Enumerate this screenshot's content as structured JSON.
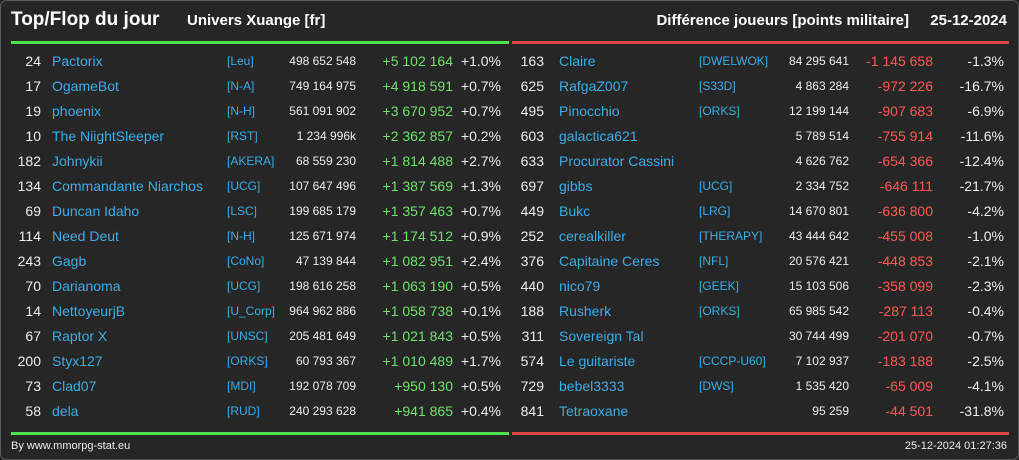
{
  "header": {
    "title": "Top/Flop du jour",
    "universe": "Univers Xuange [fr]",
    "subtitle": "Différence joueurs [points militaire]",
    "date": "25-12-2024"
  },
  "footer": {
    "credit": "By www.mmorpg-stat.eu",
    "timestamp": "25-12-2024 01:27:36"
  },
  "colors": {
    "top_accent": "#4fe04f",
    "flop_accent": "#e04a42",
    "name_link": "#3aaee8",
    "positive": "#6fe26b",
    "negative": "#ff5a52"
  },
  "top": [
    {
      "rank": "24",
      "name": "Pactorix",
      "alliance": "[Leu]",
      "points": "498 652 548",
      "diff": "+5 102 164",
      "pct": "+1.0%"
    },
    {
      "rank": "17",
      "name": "OgameBot",
      "alliance": "[N-A]",
      "points": "749 164 975",
      "diff": "+4 918 591",
      "pct": "+0.7%"
    },
    {
      "rank": "19",
      "name": "phoenix",
      "alliance": "[N-H]",
      "points": "561 091 902",
      "diff": "+3 670 952",
      "pct": "+0.7%"
    },
    {
      "rank": "10",
      "name": "The NiightSleeper",
      "alliance": "[RST]",
      "points": "1 234 996k",
      "diff": "+2 362 857",
      "pct": "+0.2%"
    },
    {
      "rank": "182",
      "name": "Johnykii",
      "alliance": "[AKERA]",
      "points": "68 559 230",
      "diff": "+1 814 488",
      "pct": "+2.7%"
    },
    {
      "rank": "134",
      "name": "Commandante Niarchos",
      "alliance": "[UCG]",
      "points": "107 647 496",
      "diff": "+1 387 569",
      "pct": "+1.3%"
    },
    {
      "rank": "69",
      "name": "Duncan Idaho",
      "alliance": "[LSC]",
      "points": "199 685 179",
      "diff": "+1 357 463",
      "pct": "+0.7%"
    },
    {
      "rank": "114",
      "name": "Need Deut",
      "alliance": "[N-H]",
      "points": "125 671 974",
      "diff": "+1 174 512",
      "pct": "+0.9%"
    },
    {
      "rank": "243",
      "name": "Gagb",
      "alliance": "[CoNo]",
      "points": "47 139 844",
      "diff": "+1 082 951",
      "pct": "+2.4%"
    },
    {
      "rank": "70",
      "name": "Darianoma",
      "alliance": "[UCG]",
      "points": "198 616 258",
      "diff": "+1 063 190",
      "pct": "+0.5%"
    },
    {
      "rank": "14",
      "name": "NettoyeurjB",
      "alliance": "[U_Corp]",
      "points": "964 962 886",
      "diff": "+1 058 738",
      "pct": "+0.1%"
    },
    {
      "rank": "67",
      "name": "Raptor X",
      "alliance": "[UNSC]",
      "points": "205 481 649",
      "diff": "+1 021 843",
      "pct": "+0.5%"
    },
    {
      "rank": "200",
      "name": "Styx127",
      "alliance": "[ORKS]",
      "points": "60 793 367",
      "diff": "+1 010 489",
      "pct": "+1.7%"
    },
    {
      "rank": "73",
      "name": "Clad07",
      "alliance": "[MDI]",
      "points": "192 078 709",
      "diff": "+950 130",
      "pct": "+0.5%"
    },
    {
      "rank": "58",
      "name": "dela",
      "alliance": "[RUD]",
      "points": "240 293 628",
      "diff": "+941 865",
      "pct": "+0.4%"
    }
  ],
  "flop": [
    {
      "rank": "163",
      "name": "Claire",
      "alliance": "[DWELWOK]",
      "points": "84 295 641",
      "diff": "-1 145 658",
      "pct": "-1.3%"
    },
    {
      "rank": "625",
      "name": "RafgaZ007",
      "alliance": "[S33D]",
      "points": "4 863 284",
      "diff": "-972 226",
      "pct": "-16.7%"
    },
    {
      "rank": "495",
      "name": "Pinocchio",
      "alliance": "[ORKS]",
      "points": "12 199 144",
      "diff": "-907 683",
      "pct": "-6.9%"
    },
    {
      "rank": "603",
      "name": "galactica621",
      "alliance": "",
      "points": "5 789 514",
      "diff": "-755 914",
      "pct": "-11.6%"
    },
    {
      "rank": "633",
      "name": "Procurator Cassini",
      "alliance": "",
      "points": "4 626 762",
      "diff": "-654 366",
      "pct": "-12.4%"
    },
    {
      "rank": "697",
      "name": "gibbs",
      "alliance": "[UCG]",
      "points": "2 334 752",
      "diff": "-646 111",
      "pct": "-21.7%"
    },
    {
      "rank": "449",
      "name": "Bukc",
      "alliance": "[LRG]",
      "points": "14 670 801",
      "diff": "-636 800",
      "pct": "-4.2%"
    },
    {
      "rank": "252",
      "name": "cerealkiller",
      "alliance": "[THERAPY]",
      "points": "43 444 642",
      "diff": "-455 008",
      "pct": "-1.0%"
    },
    {
      "rank": "376",
      "name": "Capitaine Ceres",
      "alliance": "[NFL]",
      "points": "20 576 421",
      "diff": "-448 853",
      "pct": "-2.1%"
    },
    {
      "rank": "440",
      "name": "nico79",
      "alliance": "[GEEK]",
      "points": "15 103 506",
      "diff": "-358 099",
      "pct": "-2.3%"
    },
    {
      "rank": "188",
      "name": "Rusherk",
      "alliance": "[ORKS]",
      "points": "65 985 542",
      "diff": "-287 113",
      "pct": "-0.4%"
    },
    {
      "rank": "311",
      "name": "Sovereign Tal",
      "alliance": "",
      "points": "30 744 499",
      "diff": "-201 070",
      "pct": "-0.7%"
    },
    {
      "rank": "574",
      "name": "Le guitariste",
      "alliance": "[CCCP-U60]",
      "points": "7 102 937",
      "diff": "-183 188",
      "pct": "-2.5%"
    },
    {
      "rank": "729",
      "name": "bebel3333",
      "alliance": "[DWS]",
      "points": "1 535 420",
      "diff": "-65 009",
      "pct": "-4.1%"
    },
    {
      "rank": "841",
      "name": "Tetraoxane",
      "alliance": "",
      "points": "95 259",
      "diff": "-44 501",
      "pct": "-31.8%"
    }
  ]
}
